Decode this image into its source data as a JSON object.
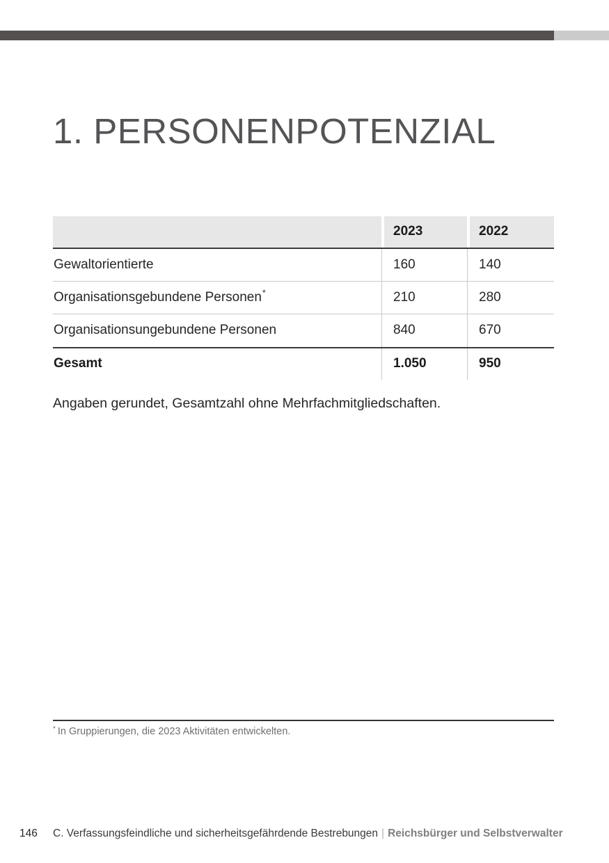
{
  "title": "1. PERSONENPOTENZIAL",
  "table": {
    "columns": [
      "",
      "2023",
      "2022"
    ],
    "rows": [
      {
        "label": "Gewaltorientierte",
        "marker": "",
        "y2023": "160",
        "y2022": "140"
      },
      {
        "label": "Organisationsgebundene Personen",
        "marker": "*",
        "y2023": "210",
        "y2022": "280"
      },
      {
        "label": "Organisationsungebundene Personen",
        "marker": "",
        "y2023": "840",
        "y2022": "670"
      },
      {
        "label": "Gesamt",
        "marker": "",
        "y2023": "1.050",
        "y2022": "950"
      }
    ]
  },
  "note": "Angaben gerundet, Gesamtzahl ohne Mehrfachmitgliedschaften.",
  "footnote": {
    "marker": "*",
    "text": "In Gruppierungen, die 2023 Aktivitäten entwickelten."
  },
  "footer": {
    "page_number": "146",
    "chapter": "C. Verfassungsfeindliche und sicherheitsgefährdende Bestrebungen",
    "separator": "|",
    "section": "Reichsbürger und Selbstverwalter"
  },
  "colors": {
    "band_dark": "#545050",
    "band_light": "#cccbcb",
    "title": "#545457",
    "table_header_bg": "#e8e7e7",
    "body_text": "#262626",
    "light_border": "#c9c9c9",
    "dark_border": "#3a3a3a",
    "footnote_text": "#6f6f6f",
    "footer_section": "#7f7f7f"
  }
}
